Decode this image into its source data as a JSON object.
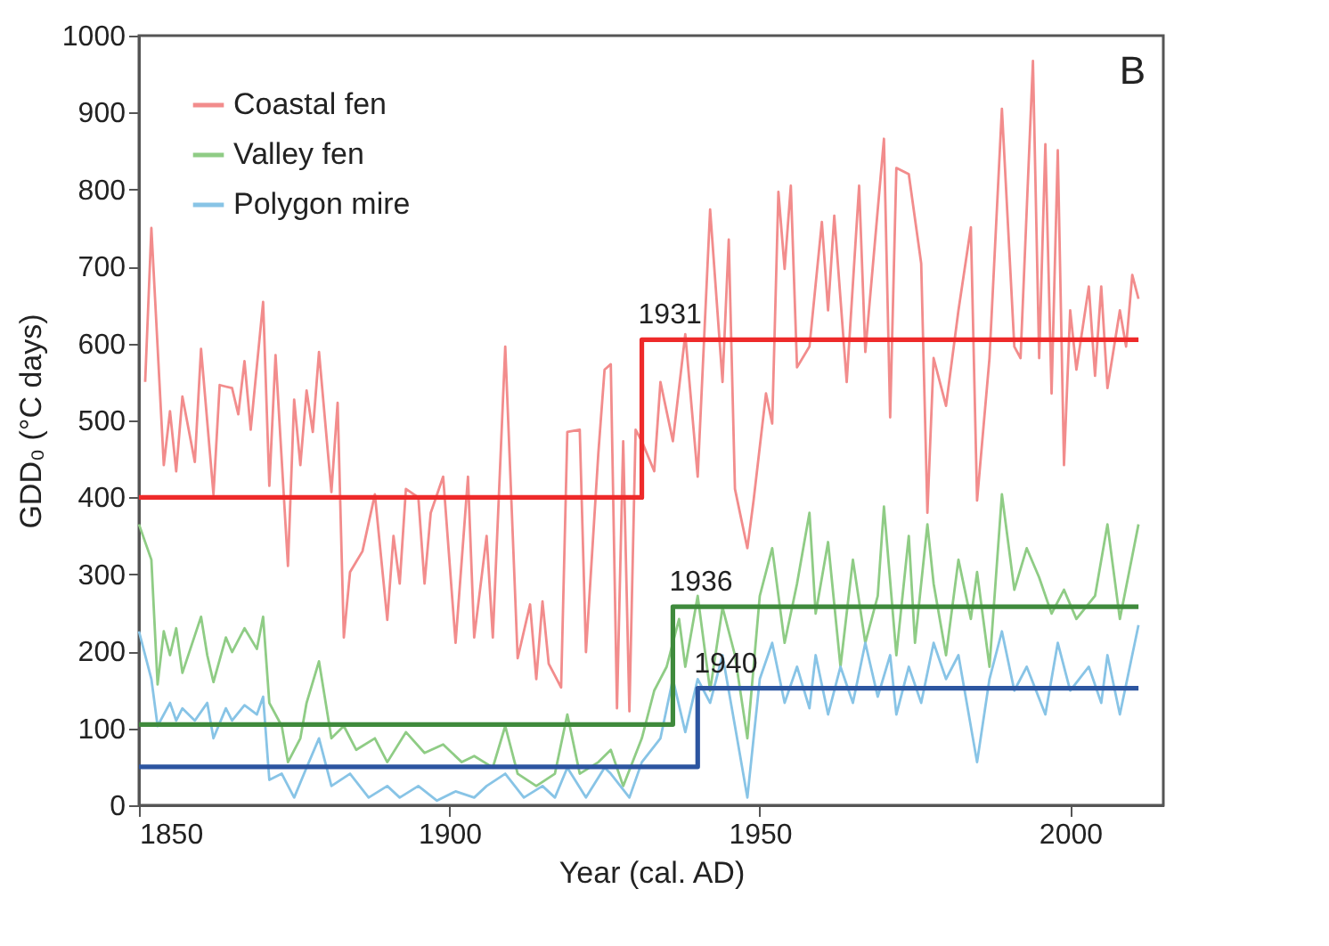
{
  "chart_data": {
    "type": "line",
    "xlabel": "Year (cal. AD)",
    "ylabel": "GDD₀ (°C days)",
    "xlim": [
      1850,
      2015
    ],
    "xticks": [
      1850,
      1900,
      1950,
      2000
    ],
    "ylim": [
      0,
      1000
    ],
    "yticks": [
      0,
      100,
      200,
      300,
      400,
      500,
      600,
      700,
      800,
      900,
      1000
    ],
    "grid": false,
    "legend": "top left",
    "marker": "none",
    "line_style": "solid",
    "annotations": [
      "B",
      {
        "text": "1931",
        "x": 1931,
        "y": 605
      },
      {
        "text": "1936",
        "x": 1936,
        "y": 258
      },
      {
        "text": "1940",
        "x": 1940,
        "y": 152
      }
    ],
    "series": [
      {
        "name": "Coastal fen",
        "color": "#f28c8c",
        "x": [
          1851,
          1852,
          1854,
          1855,
          1856,
          1857,
          1859,
          1860,
          1862,
          1863,
          1865,
          1866,
          1867,
          1868,
          1870,
          1871,
          1872,
          1874,
          1875,
          1876,
          1877,
          1878,
          1879,
          1881,
          1882,
          1883,
          1884,
          1886,
          1888,
          1890,
          1891,
          1892,
          1893,
          1895,
          1896,
          1897,
          1899,
          1901,
          1903,
          1904,
          1906,
          1907,
          1909,
          1911,
          1913,
          1914,
          1915,
          1916,
          1918,
          1919,
          1921,
          1922,
          1924,
          1925,
          1926,
          1927,
          1928,
          1929,
          1930,
          1931,
          1933,
          1934,
          1936,
          1938,
          1940,
          1942,
          1944,
          1945,
          1946,
          1948,
          1949,
          1951,
          1952,
          1953,
          1954,
          1955,
          1956,
          1958,
          1960,
          1961,
          1962,
          1964,
          1966,
          1967,
          1970,
          1971,
          1972,
          1974,
          1976,
          1977,
          1978,
          1980,
          1982,
          1984,
          1985,
          1987,
          1989,
          1991,
          1992,
          1994,
          1995,
          1996,
          1997,
          1998,
          1999,
          2000,
          2001,
          2003,
          2004,
          2005,
          2006,
          2008,
          2009,
          2010,
          2011
        ],
        "values": [
          550,
          750,
          442,
          512,
          434,
          531,
          446,
          593,
          404,
          546,
          542,
          508,
          577,
          488,
          654,
          415,
          585,
          311,
          527,
          442,
          539,
          485,
          589,
          407,
          523,
          218,
          303,
          330,
          404,
          241,
          350,
          288,
          411,
          400,
          288,
          380,
          427,
          211,
          427,
          218,
          350,
          218,
          596,
          191,
          261,
          164,
          265,
          184,
          153,
          485,
          488,
          199,
          458,
          566,
          573,
          126,
          473,
          122,
          488,
          473,
          434,
          550,
          473,
          612,
          427,
          774,
          550,
          735,
          411,
          334,
          396,
          535,
          496,
          797,
          697,
          805,
          569,
          596,
          758,
          643,
          766,
          550,
          805,
          589,
          866,
          504,
          828,
          820,
          704,
          380,
          581,
          519,
          643,
          751,
          396,
          581,
          905,
          596,
          581,
          967,
          581,
          859,
          535,
          851,
          442,
          643,
          566,
          674,
          558,
          674,
          542,
          643,
          596,
          689,
          658
        ]
      },
      {
        "name": "Valley fen",
        "color": "#8fcc85",
        "x": [
          1850,
          1852,
          1853,
          1854,
          1855,
          1856,
          1857,
          1860,
          1861,
          1862,
          1864,
          1865,
          1867,
          1869,
          1870,
          1871,
          1873,
          1874,
          1876,
          1877,
          1879,
          1881,
          1883,
          1885,
          1888,
          1890,
          1893,
          1896,
          1899,
          1902,
          1904,
          1907,
          1909,
          1911,
          1914,
          1917,
          1919,
          1921,
          1924,
          1926,
          1928,
          1931,
          1933,
          1935,
          1937,
          1938,
          1940,
          1942,
          1944,
          1946,
          1948,
          1950,
          1952,
          1954,
          1956,
          1958,
          1959,
          1961,
          1963,
          1965,
          1967,
          1969,
          1970,
          1972,
          1974,
          1975,
          1977,
          1978,
          1980,
          1982,
          1984,
          1985,
          1987,
          1989,
          1991,
          1993,
          1995,
          1997,
          1999,
          2001,
          2004,
          2006,
          2008,
          2011
        ],
        "values": [
          365,
          319,
          157,
          226,
          195,
          230,
          172,
          245,
          195,
          160,
          218,
          199,
          230,
          203,
          245,
          133,
          103,
          56,
          87,
          133,
          187,
          87,
          103,
          72,
          87,
          56,
          95,
          68,
          79,
          56,
          64,
          49,
          103,
          41,
          25,
          41,
          118,
          41,
          56,
          72,
          25,
          87,
          149,
          180,
          242,
          180,
          272,
          149,
          257,
          195,
          87,
          272,
          334,
          211,
          288,
          380,
          249,
          342,
          180,
          319,
          211,
          272,
          388,
          195,
          350,
          211,
          365,
          288,
          195,
          319,
          242,
          303,
          180,
          404,
          280,
          334,
          296,
          249,
          280,
          242,
          272,
          365,
          242,
          365
        ]
      },
      {
        "name": "Polygon mire",
        "color": "#88c4e6",
        "x": [
          1850,
          1852,
          1853,
          1855,
          1856,
          1857,
          1859,
          1861,
          1862,
          1864,
          1865,
          1867,
          1869,
          1870,
          1871,
          1873,
          1875,
          1877,
          1879,
          1881,
          1884,
          1887,
          1890,
          1892,
          1895,
          1898,
          1901,
          1904,
          1906,
          1909,
          1912,
          1915,
          1917,
          1919,
          1922,
          1925,
          1926,
          1929,
          1931,
          1934,
          1936,
          1938,
          1940,
          1942,
          1944,
          1946,
          1948,
          1950,
          1952,
          1954,
          1956,
          1958,
          1959,
          1961,
          1963,
          1965,
          1967,
          1969,
          1971,
          1972,
          1974,
          1976,
          1978,
          1980,
          1982,
          1985,
          1987,
          1989,
          1991,
          1993,
          1996,
          1998,
          2000,
          2003,
          2005,
          2006,
          2008,
          2011
        ],
        "values": [
          226,
          164,
          103,
          133,
          110,
          126,
          110,
          133,
          87,
          126,
          110,
          130,
          118,
          141,
          33,
          41,
          10,
          49,
          87,
          25,
          41,
          10,
          25,
          10,
          25,
          6,
          18,
          10,
          25,
          41,
          10,
          25,
          10,
          49,
          10,
          49,
          41,
          10,
          56,
          87,
          164,
          95,
          164,
          133,
          195,
          103,
          10,
          164,
          211,
          133,
          180,
          126,
          195,
          118,
          180,
          133,
          211,
          141,
          195,
          118,
          180,
          133,
          211,
          164,
          195,
          56,
          164,
          226,
          149,
          180,
          118,
          211,
          149,
          180,
          133,
          195,
          118,
          234
        ]
      },
      {
        "type": "step",
        "color": "#ee2a2a",
        "x": [
          1850,
          1931,
          2011
        ],
        "values": [
          400,
          605,
          605
        ]
      },
      {
        "type": "step",
        "color": "#3f8a3c",
        "x": [
          1850,
          1936,
          2011
        ],
        "values": [
          105,
          258,
          258
        ]
      },
      {
        "type": "step",
        "color": "#2c55a0",
        "x": [
          1850,
          1940,
          2011
        ],
        "values": [
          50,
          152,
          152
        ]
      }
    ]
  }
}
